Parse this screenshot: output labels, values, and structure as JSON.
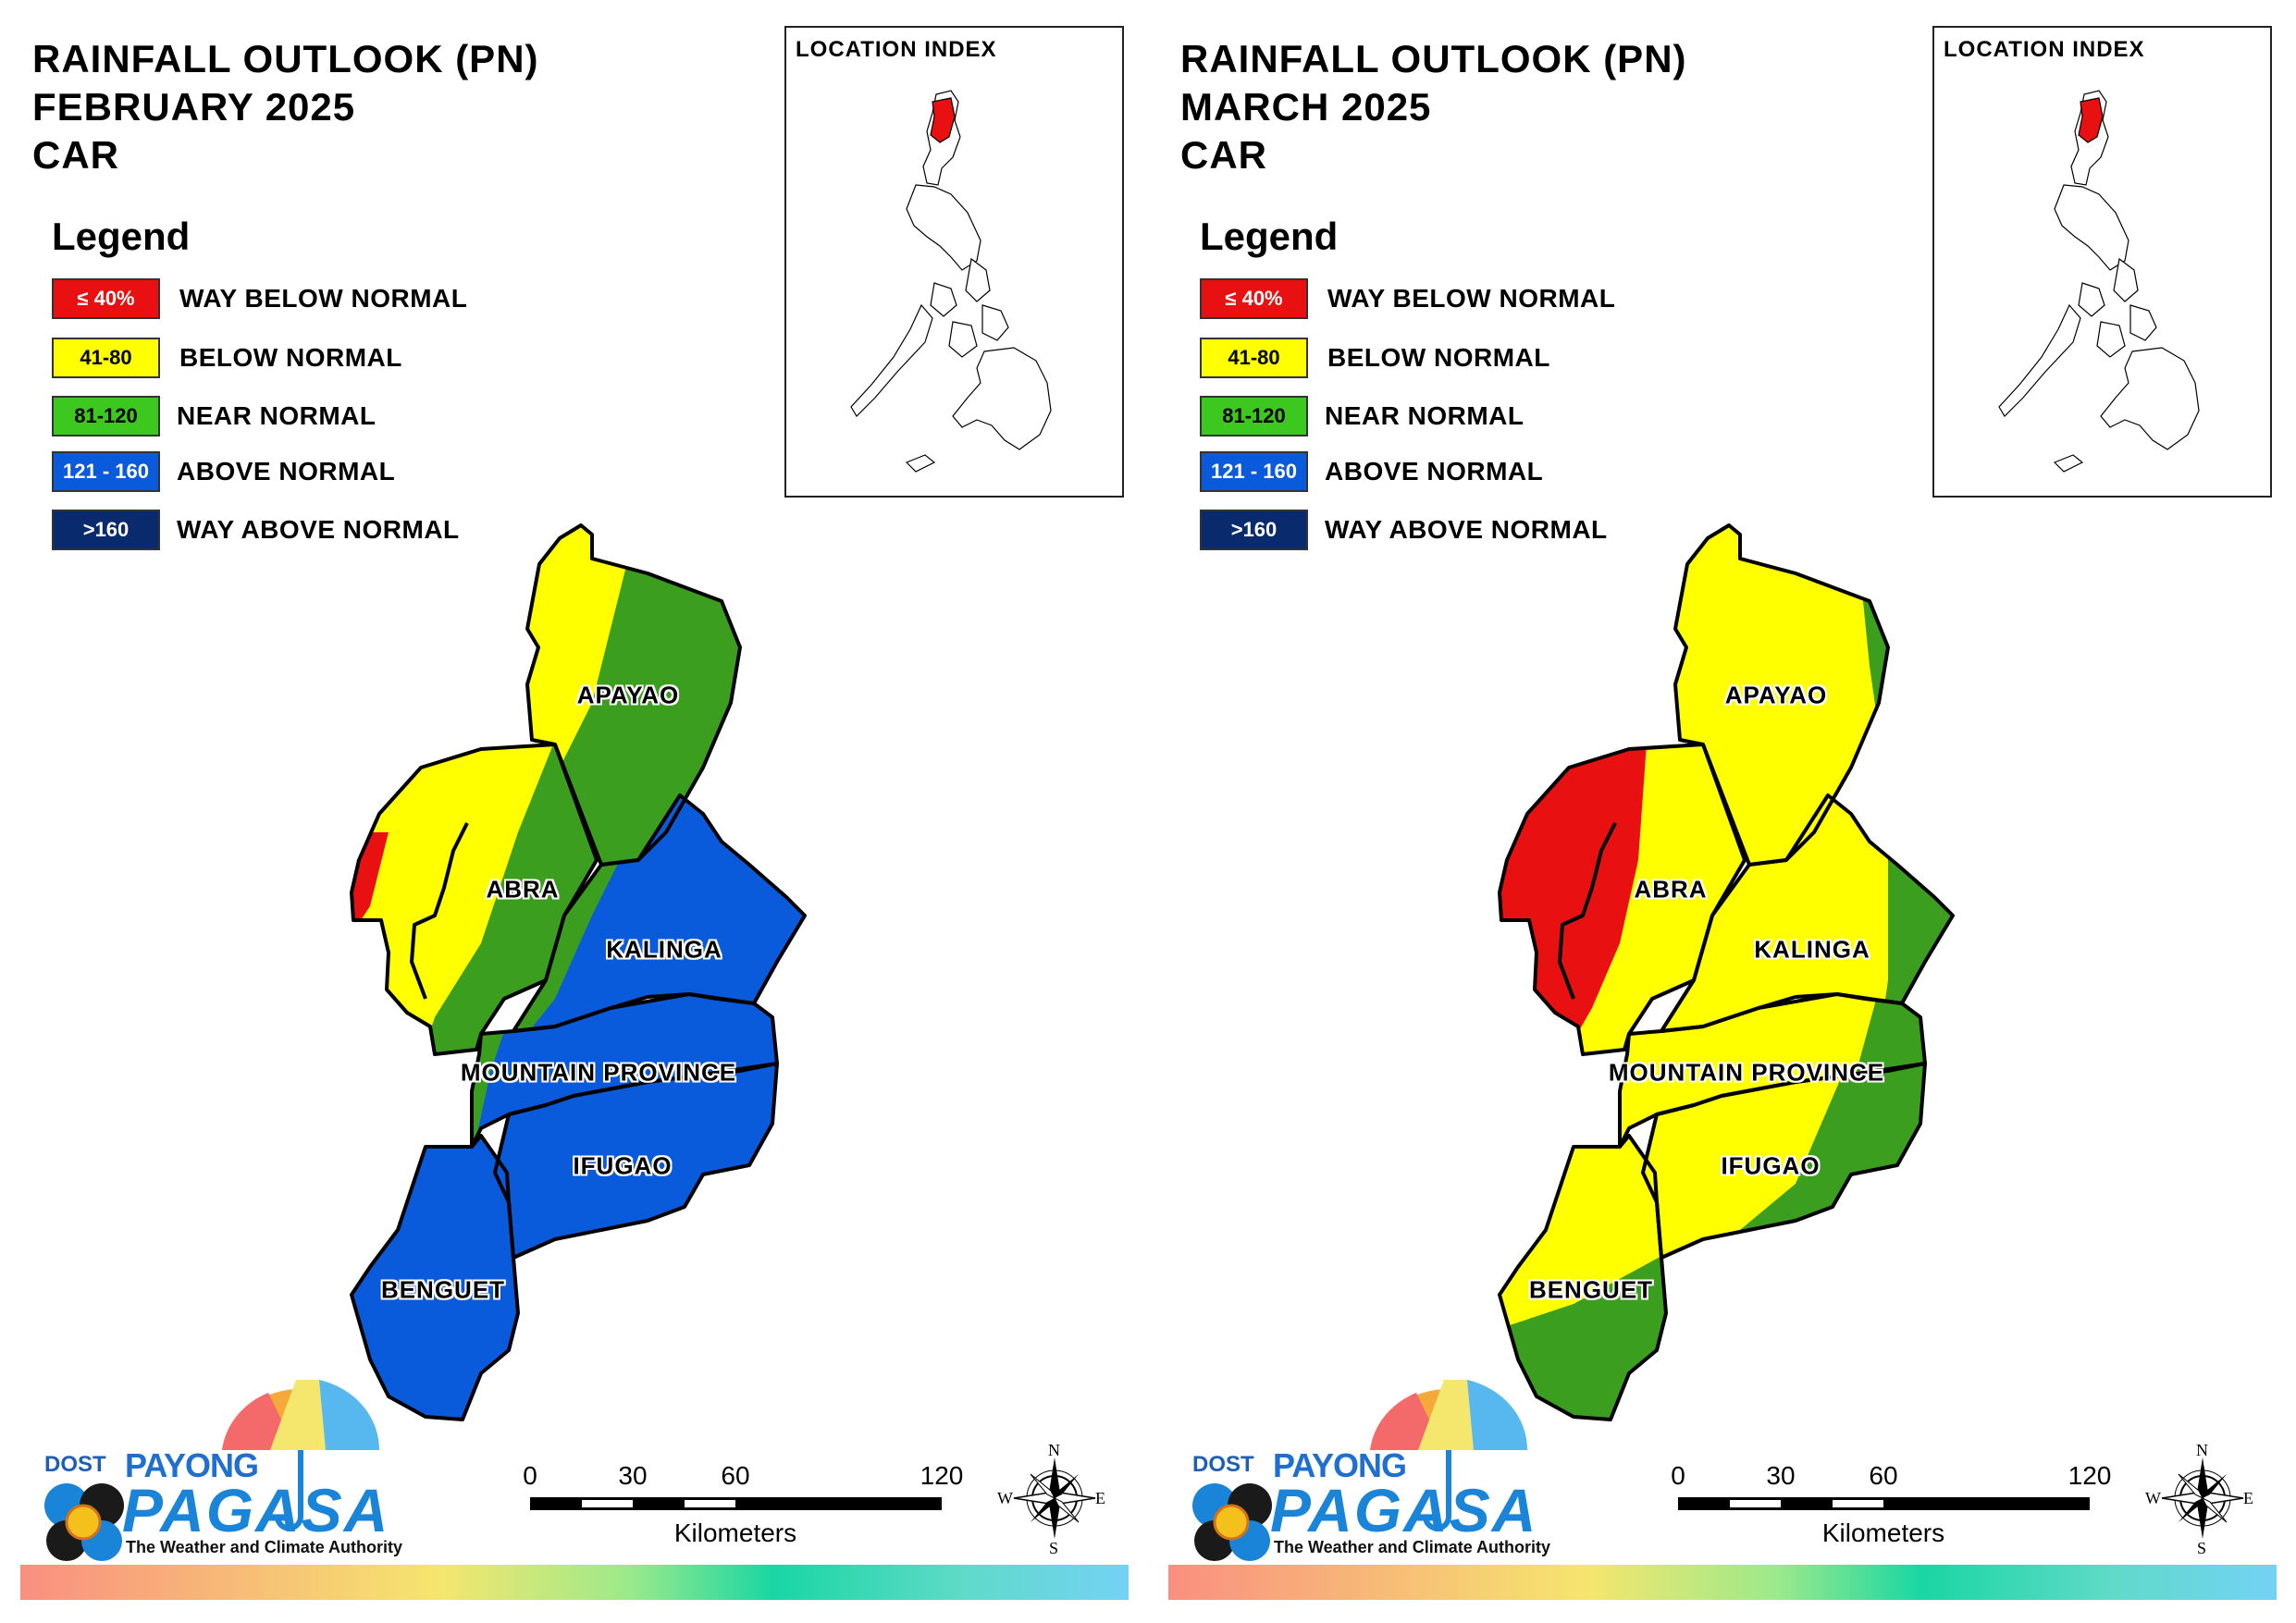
{
  "legend_title": "Legend",
  "legend": [
    {
      "code": "≤ 40%",
      "label": "WAY BELOW NORMAL",
      "color": "#e81010",
      "text_color": "#ffffff"
    },
    {
      "code": "41-80",
      "label": "BELOW NORMAL",
      "color": "#ffff00",
      "text_color": "#000000"
    },
    {
      "code": "81-120",
      "label": "NEAR NORMAL",
      "color": "#3cc81e",
      "text_color": "#000000"
    },
    {
      "code": "121 - 160",
      "label": "ABOVE NORMAL",
      "color": "#0a5adc",
      "text_color": "#ffffff"
    },
    {
      "code": ">160",
      "label": "WAY ABOVE NORMAL",
      "color": "#0a2a6e",
      "text_color": "#ffffff"
    }
  ],
  "map_colors": {
    "way_below": "#e81010",
    "below": "#ffff00",
    "near": "#3c9e1e",
    "above": "#0a5adc"
  },
  "panels": [
    {
      "title_line1": "RAINFALL OUTLOOK (PN)",
      "title_line2": "FEBRUARY 2025",
      "title_line3": "CAR",
      "inset_title": "LOCATION INDEX",
      "provinces": [
        "APAYAO",
        "ABRA",
        "KALINGA",
        "MOUNTAIN PROVINCE",
        "IFUGAO",
        "BENGUET"
      ],
      "province_categories": {
        "APAYAO": [
          "below",
          "near"
        ],
        "ABRA": [
          "way_below",
          "below",
          "near"
        ],
        "KALINGA": [
          "near",
          "above"
        ],
        "MOUNTAIN PROVINCE": [
          "near",
          "above"
        ],
        "IFUGAO": [
          "above"
        ],
        "BENGUET": [
          "above"
        ]
      }
    },
    {
      "title_line1": "RAINFALL OUTLOOK (PN)",
      "title_line2": "MARCH 2025",
      "title_line3": "CAR",
      "inset_title": "LOCATION INDEX",
      "provinces": [
        "APAYAO",
        "ABRA",
        "KALINGA",
        "MOUNTAIN PROVINCE",
        "IFUGAO",
        "BENGUET"
      ],
      "province_categories": {
        "APAYAO": [
          "below",
          "near"
        ],
        "ABRA": [
          "way_below",
          "below"
        ],
        "KALINGA": [
          "below",
          "near"
        ],
        "MOUNTAIN PROVINCE": [
          "below",
          "near"
        ],
        "IFUGAO": [
          "below",
          "near"
        ],
        "BENGUET": [
          "below",
          "near"
        ]
      }
    }
  ],
  "scale": {
    "ticks": [
      "0",
      "30",
      "60",
      "120"
    ],
    "unit": "Kilometers"
  },
  "compass": {
    "n": "N",
    "s": "S",
    "e": "E",
    "w": "W"
  },
  "logo": {
    "dost": "DOST",
    "payong": "PAYONG",
    "pagasa": "PAGASA",
    "tagline": "The Weather and Climate Authority"
  }
}
